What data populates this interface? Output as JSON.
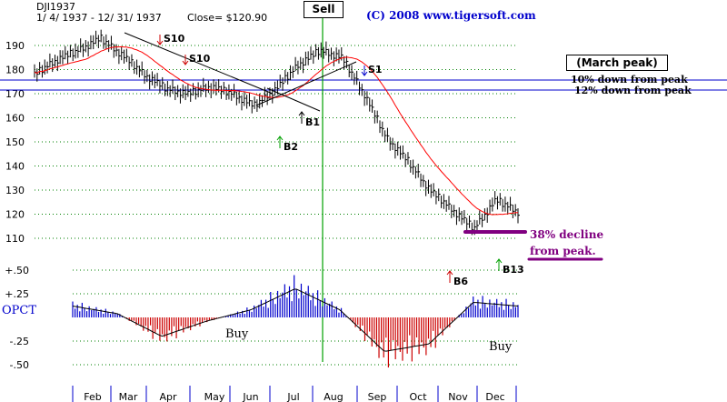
{
  "header": {
    "symbol": "DJI1937",
    "range": "1/ 4/ 1937 - 12/ 31/ 1937",
    "close": "Close= $120.90",
    "copyright": "(C) 2008 www.tigersoft.com",
    "sell_label": "Sell",
    "march_peak": "(March peak)",
    "down10": "10% down from peak",
    "down12": "12% down from peak",
    "decline_line1": "38% decline",
    "decline_line2": "from peak.",
    "opct_label": "OPCT",
    "buy1": "Buy",
    "buy2": "Buy"
  },
  "colors": {
    "price": "#000000",
    "ma": "#ff0000",
    "grid": "#008000",
    "levels": "#0000cc",
    "sell_line": "#00a000",
    "opct_pos": "#0000cc",
    "opct_neg": "#cc0000",
    "purple": "#800080",
    "signal_up": "#00a000",
    "signal_red": "#cc0000"
  },
  "chart_data": [
    {
      "type": "line",
      "title": "DJI1937",
      "series": [
        {
          "name": "",
          "x": [
            "Jan",
            "Feb",
            "Feb",
            "Mar",
            "Mar",
            "Apr",
            "Apr",
            "May",
            "May",
            "Jun",
            "Jun",
            "Jul",
            "Jul",
            "Aug",
            "Aug",
            "Sep",
            "Sep",
            "Oct",
            "Oct",
            "Nov",
            "Nov",
            "Dec",
            "Dec"
          ],
          "values": [
            178,
            184,
            188,
            193,
            186,
            178,
            172,
            170,
            173,
            170,
            165,
            172,
            182,
            188,
            185,
            170,
            152,
            142,
            130,
            122,
            114,
            126,
            121
          ]
        }
      ],
      "x_labels": [
        "Feb",
        "Mar",
        "Apr",
        "May",
        "Jun",
        "Jul",
        "Aug",
        "Sep",
        "Oct",
        "Nov",
        "Dec"
      ],
      "y_ticks": [
        110,
        120,
        130,
        140,
        150,
        160,
        170,
        180,
        190
      ],
      "ylim": [
        105,
        195
      ],
      "grid": true,
      "annotations": [
        {
          "label": "S10",
          "month": "Mar",
          "price": 189
        },
        {
          "label": "S10",
          "month": "Apr",
          "price": 180
        },
        {
          "label": "B1",
          "month": "Jul",
          "price": 160
        },
        {
          "label": "B2",
          "month": "Jun",
          "price": 150
        },
        {
          "label": "S1",
          "month": "Aug",
          "price": 178
        },
        {
          "label": "B6",
          "month": "Nov",
          "price": 100
        },
        {
          "label": "B13",
          "month": "Dec",
          "price": 104
        }
      ]
    },
    {
      "type": "bar",
      "title": "OPCT",
      "y_ticks": [
        "+.50",
        "+.25",
        "-.25",
        "-.50"
      ],
      "ylim": [
        -0.5,
        0.5
      ],
      "categories": [
        "Feb",
        "Mar",
        "Apr",
        "May",
        "Jun",
        "Jul",
        "Aug",
        "Sep",
        "Oct",
        "Nov",
        "Dec"
      ],
      "values": [
        0.15,
        0.05,
        -0.25,
        -0.05,
        0.1,
        0.38,
        0.1,
        -0.45,
        -0.35,
        0.2,
        0.15
      ]
    }
  ]
}
